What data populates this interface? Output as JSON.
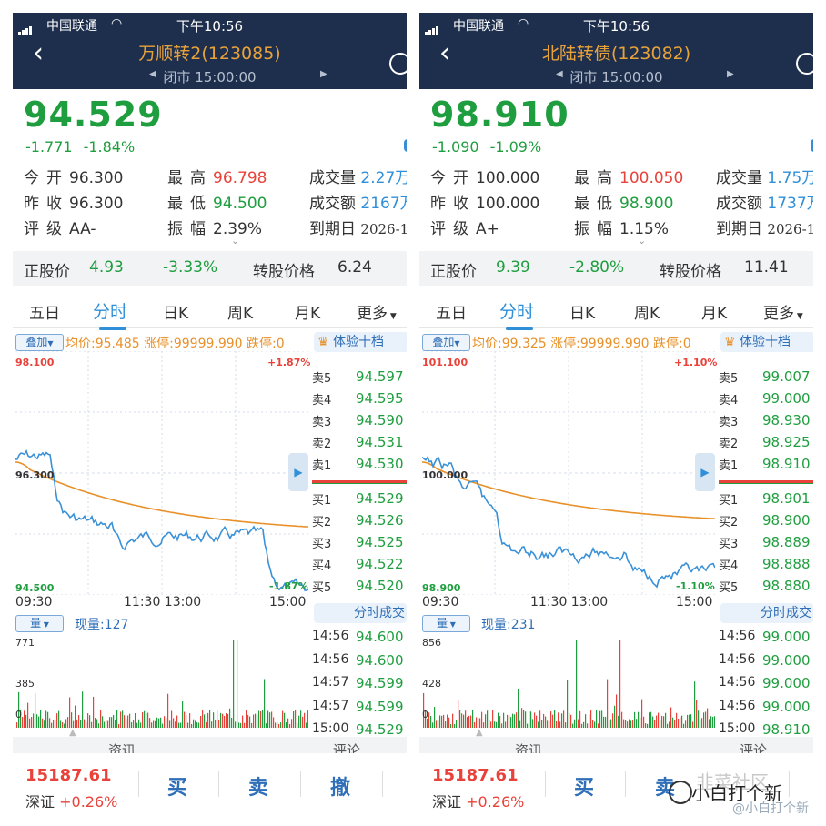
{
  "status": {
    "carrier": "中国联通",
    "time": "下午10:56"
  },
  "panels": [
    {
      "title": "万顺转2(123085)",
      "subtitle": "闭市 15:00:00",
      "price": "94.529",
      "change": "-1.771",
      "change_pct": "-1.84%",
      "stats": {
        "open_k": "今开",
        "open_v": "96.300",
        "high_k": "最高",
        "high_v": "96.798",
        "volume_k": "成交量",
        "volume_v": "2.27万",
        "prev_k": "昨收",
        "prev_v": "96.300",
        "low_k": "最低",
        "low_v": "94.500",
        "amount_k": "成交额",
        "amount_v": "2167万",
        "rating_k": "评级",
        "rating_v": "AA-",
        "amp_k": "振幅",
        "amp_v": "2.39%",
        "maturity_k": "到期日",
        "maturity_v": "2026-1"
      },
      "info": {
        "stock_k": "正股价",
        "stock_v": "4.93",
        "stock_pct": "-3.33%",
        "conv_k": "转股价格",
        "conv_v": "6.24"
      },
      "tabs": [
        "五日",
        "分时",
        "日K",
        "周K",
        "月K",
        "更多"
      ],
      "active_tab": 1,
      "overlay": "叠加",
      "avg_line": "均价:95.485 涨停:99999.990 跌停:0",
      "axis": {
        "hi": "98.100",
        "mid": "96.300",
        "lo": "94.500",
        "pct_hi": "+1.87%",
        "pct_lo": "-1.87%"
      },
      "times": [
        "09:30",
        "11:30 13:00",
        "15:00"
      ],
      "vol_label": "量",
      "vol_now": "现量:127",
      "vol_ticks": [
        "771",
        "385",
        "0"
      ],
      "level_head": "体验十档",
      "asks": [
        {
          "label": "卖5",
          "price": "94.597"
        },
        {
          "label": "卖4",
          "price": "94.595"
        },
        {
          "label": "卖3",
          "price": "94.590"
        },
        {
          "label": "卖2",
          "price": "94.531"
        },
        {
          "label": "卖1",
          "price": "94.530"
        }
      ],
      "bids": [
        {
          "label": "买1",
          "price": "94.529"
        },
        {
          "label": "买2",
          "price": "94.526"
        },
        {
          "label": "买3",
          "price": "94.525"
        },
        {
          "label": "买4",
          "price": "94.522"
        },
        {
          "label": "买5",
          "price": "94.520"
        }
      ],
      "tick_head": "分时成交",
      "trades": [
        {
          "time": "14:56",
          "price": "94.600"
        },
        {
          "time": "14:56",
          "price": "94.600"
        },
        {
          "time": "14:57",
          "price": "94.599"
        },
        {
          "time": "14:57",
          "price": "94.599"
        },
        {
          "time": "15:00",
          "price": "94.529"
        }
      ],
      "sep_left": "资讯",
      "sep_right": "评论",
      "index_value": "15187.61",
      "index_name": "深证",
      "index_pct": "+0.26%",
      "actions": [
        "买",
        "卖",
        "撤"
      ]
    },
    {
      "title": "北陆转债(123082)",
      "subtitle": "闭市 15:00:00",
      "price": "98.910",
      "change": "-1.090",
      "change_pct": "-1.09%",
      "stats": {
        "open_k": "今开",
        "open_v": "100.000",
        "high_k": "最高",
        "high_v": "100.050",
        "volume_k": "成交量",
        "volume_v": "1.75万",
        "prev_k": "昨收",
        "prev_v": "100.000",
        "low_k": "最低",
        "low_v": "98.900",
        "amount_k": "成交额",
        "amount_v": "1737万",
        "rating_k": "评级",
        "rating_v": "A+",
        "amp_k": "振幅",
        "amp_v": "1.15%",
        "maturity_k": "到期日",
        "maturity_v": "2026-1"
      },
      "info": {
        "stock_k": "正股价",
        "stock_v": "9.39",
        "stock_pct": "-2.80%",
        "conv_k": "转股价格",
        "conv_v": "11.41"
      },
      "tabs": [
        "五日",
        "分时",
        "日K",
        "周K",
        "月K",
        "更多"
      ],
      "active_tab": 1,
      "overlay": "叠加",
      "avg_line": "均价:99.325 涨停:99999.990 跌停:0",
      "axis": {
        "hi": "101.100",
        "mid": "100.000",
        "lo": "98.900",
        "pct_hi": "+1.10%",
        "pct_lo": "-1.10%"
      },
      "times": [
        "09:30",
        "11:30 13:00",
        "15:00"
      ],
      "vol_label": "量",
      "vol_now": "现量:231",
      "vol_ticks": [
        "856",
        "428",
        "0"
      ],
      "level_head": "体验十档",
      "asks": [
        {
          "label": "卖5",
          "price": "99.007"
        },
        {
          "label": "卖4",
          "price": "99.000"
        },
        {
          "label": "卖3",
          "price": "98.930"
        },
        {
          "label": "卖2",
          "price": "98.925"
        },
        {
          "label": "卖1",
          "price": "98.910"
        }
      ],
      "bids": [
        {
          "label": "买1",
          "price": "98.901"
        },
        {
          "label": "买2",
          "price": "98.900"
        },
        {
          "label": "买3",
          "price": "98.889"
        },
        {
          "label": "买4",
          "price": "98.888"
        },
        {
          "label": "买5",
          "price": "98.880"
        }
      ],
      "tick_head": "分时成交",
      "trades": [
        {
          "time": "14:56",
          "price": "99.000"
        },
        {
          "time": "14:56",
          "price": "99.000"
        },
        {
          "time": "14:56",
          "price": "99.000"
        },
        {
          "time": "14:56",
          "price": "99.000"
        },
        {
          "time": "15:00",
          "price": "98.910"
        }
      ],
      "sep_left": "资讯",
      "sep_right": "评论",
      "index_value": "15187.61",
      "index_name": "深证",
      "index_pct": "+0.26%",
      "actions": [
        "买",
        "卖"
      ]
    }
  ],
  "watermark": {
    "line1": "韭菜社区",
    "line2": "小白打个新",
    "line3": "@小白打个新"
  },
  "colors": {
    "header": "#1e2f4d",
    "up": "#e8423a",
    "down": "#1f9e3f",
    "accent": "#2f8fd8",
    "avg": "#e8912a"
  }
}
